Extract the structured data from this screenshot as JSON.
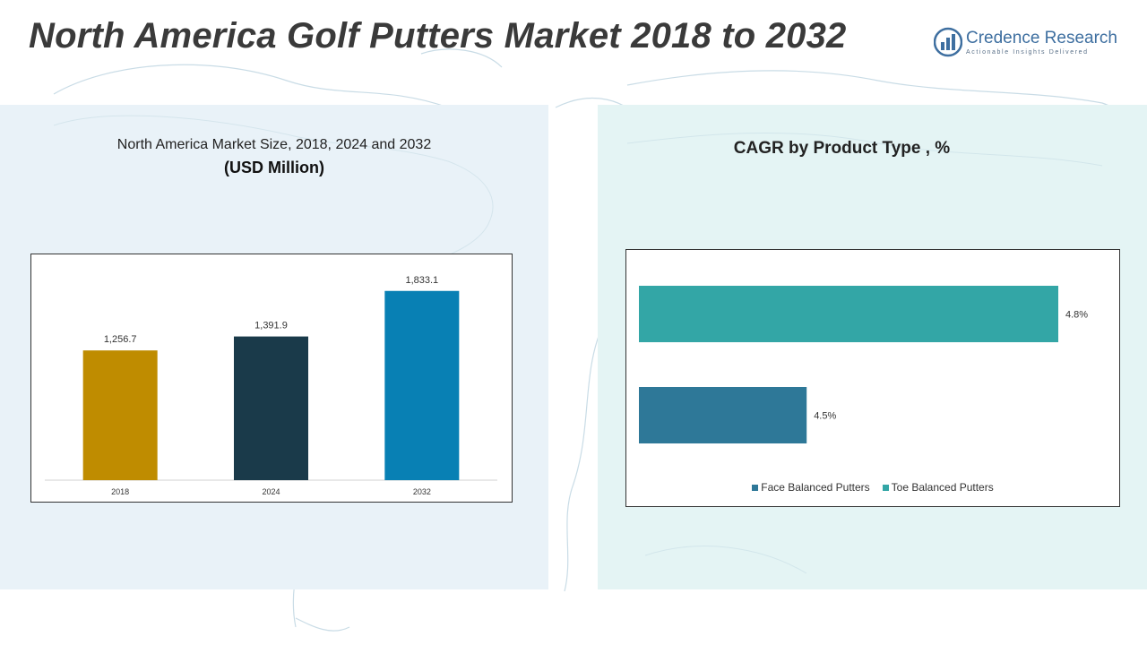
{
  "header": {
    "title": "North America Golf Putters Market 2018 to 2032"
  },
  "logo": {
    "name": "Credence Research",
    "tagline": "Actionable Insights Delivered",
    "icon": "bar-chart-logo-icon",
    "color": "#3e6fa0"
  },
  "colors": {
    "left_panel": "#e9f2f8",
    "right_panel": "#e4f4f4"
  },
  "chart_data": [
    {
      "type": "bar",
      "title": "North America Market Size, 2018, 2024 and 2032",
      "subtitle": "(USD Million)",
      "categories": [
        "2018",
        "2024",
        "2032"
      ],
      "values": [
        1256.7,
        1391.9,
        1833.1
      ],
      "value_labels": [
        "1,256.7",
        "1,391.9",
        "1,833.1"
      ],
      "colors": [
        "#bf8c00",
        "#1a3a4a",
        "#0880b4"
      ],
      "ylim": [
        0,
        2100
      ],
      "grid": false,
      "legend": "none"
    },
    {
      "type": "bar",
      "orientation": "horizontal",
      "title": "CAGR by Product Type , %",
      "series": [
        {
          "name": "Toe Balanced Putters",
          "value": 4.8,
          "label": "4.8%",
          "color": "#33a6a6"
        },
        {
          "name": "Face Balanced Putters",
          "value": 4.5,
          "label": "4.5%",
          "color": "#2e7898"
        }
      ],
      "legend_order": [
        "Face Balanced Putters",
        "Toe Balanced Putters"
      ],
      "baseline": 4.3,
      "grid": false,
      "legend": "bottom"
    }
  ]
}
